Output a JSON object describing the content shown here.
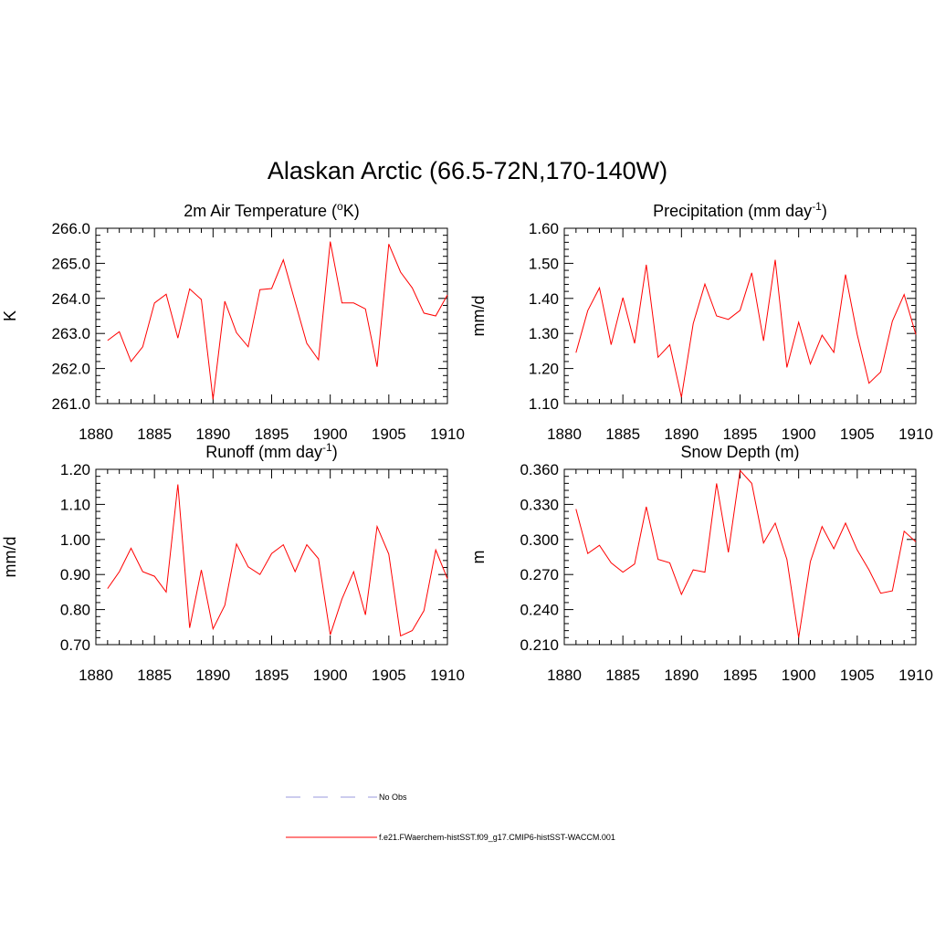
{
  "figure": {
    "title": "Alaskan Arctic (66.5-72N,170-140W)"
  },
  "colors": {
    "series": "#ff0000",
    "no_obs": "#9999dd",
    "axes": "#000000"
  },
  "legend": [
    {
      "label": "No Obs",
      "style": "dashed"
    },
    {
      "label": "f.e21.FWaerchem-histSST.f09_g17.CMIP6-histSST-WACCM.001",
      "style": "solid"
    }
  ],
  "chart_data": [
    {
      "type": "line",
      "title_main": "2m Air Temperature (",
      "title_sup": "o",
      "title_tail": "K)",
      "ylabel": "K",
      "xlim": [
        1880,
        1910
      ],
      "ylim": [
        261.0,
        266.0
      ],
      "x_ticks": [
        "1880",
        "1885",
        "1890",
        "1895",
        "1900",
        "1905",
        "1910"
      ],
      "y_ticks": [
        "261.0",
        "262.0",
        "263.0",
        "264.0",
        "265.0",
        "266.0"
      ],
      "x": [
        1881,
        1882,
        1883,
        1884,
        1885,
        1886,
        1887,
        1888,
        1889,
        1890,
        1891,
        1892,
        1893,
        1894,
        1895,
        1896,
        1897,
        1898,
        1899,
        1900,
        1901,
        1902,
        1903,
        1904,
        1905,
        1906,
        1907,
        1908,
        1909,
        1910
      ],
      "values": [
        262.8,
        263.05,
        262.2,
        262.62,
        263.87,
        264.12,
        262.87,
        264.27,
        263.97,
        261.12,
        263.92,
        263.02,
        262.62,
        264.25,
        264.28,
        265.1,
        263.9,
        262.72,
        262.25,
        265.62,
        263.87,
        263.87,
        263.7,
        262.05,
        265.55,
        264.75,
        264.3,
        263.58,
        263.5,
        264.1
      ],
      "series": [
        {
          "name": "f.e21.FWaerchem-histSST.f09_g17.CMIP6-histSST-WACCM.001"
        }
      ],
      "grid": false
    },
    {
      "type": "line",
      "title_main": "Precipitation (mm day",
      "title_sup": "-1",
      "title_tail": ")",
      "ylabel": "mm/d",
      "xlim": [
        1880,
        1910
      ],
      "ylim": [
        1.1,
        1.6
      ],
      "x_ticks": [
        "1880",
        "1885",
        "1890",
        "1895",
        "1900",
        "1905",
        "1910"
      ],
      "y_ticks": [
        "1.10",
        "1.20",
        "1.30",
        "1.40",
        "1.50",
        "1.60"
      ],
      "x": [
        1881,
        1882,
        1883,
        1884,
        1885,
        1886,
        1887,
        1888,
        1889,
        1890,
        1891,
        1892,
        1893,
        1894,
        1895,
        1896,
        1897,
        1898,
        1899,
        1900,
        1901,
        1902,
        1903,
        1904,
        1905,
        1906,
        1907,
        1908,
        1909,
        1910
      ],
      "values": [
        1.245,
        1.365,
        1.43,
        1.268,
        1.402,
        1.272,
        1.496,
        1.232,
        1.268,
        1.118,
        1.328,
        1.441,
        1.35,
        1.34,
        1.366,
        1.473,
        1.279,
        1.51,
        1.203,
        1.332,
        1.213,
        1.295,
        1.246,
        1.468,
        1.297,
        1.158,
        1.19,
        1.335,
        1.411,
        1.297
      ],
      "series": [
        {
          "name": "f.e21.FWaerchem-histSST.f09_g17.CMIP6-histSST-WACCM.001"
        }
      ],
      "grid": false
    },
    {
      "type": "line",
      "title_main": "Runoff (mm day",
      "title_sup": "-1",
      "title_tail": ")",
      "ylabel": "mm/d",
      "xlim": [
        1880,
        1910
      ],
      "ylim": [
        0.7,
        1.2
      ],
      "x_ticks": [
        "1880",
        "1885",
        "1890",
        "1895",
        "1900",
        "1905",
        "1910"
      ],
      "y_ticks": [
        "0.70",
        "0.80",
        "0.90",
        "1.00",
        "1.10",
        "1.20"
      ],
      "x": [
        1881,
        1882,
        1883,
        1884,
        1885,
        1886,
        1887,
        1888,
        1889,
        1890,
        1891,
        1892,
        1893,
        1894,
        1895,
        1896,
        1897,
        1898,
        1899,
        1900,
        1901,
        1902,
        1903,
        1904,
        1905,
        1906,
        1907,
        1908,
        1909,
        1910
      ],
      "values": [
        0.86,
        0.908,
        0.975,
        0.908,
        0.895,
        0.85,
        1.157,
        0.748,
        0.913,
        0.745,
        0.812,
        0.987,
        0.922,
        0.9,
        0.96,
        0.985,
        0.908,
        0.985,
        0.945,
        0.728,
        0.83,
        0.908,
        0.785,
        1.037,
        0.958,
        0.725,
        0.74,
        0.797,
        0.97,
        0.888
      ],
      "series": [
        {
          "name": "f.e21.FWaerchem-histSST.f09_g17.CMIP6-histSST-WACCM.001"
        }
      ],
      "grid": false
    },
    {
      "type": "line",
      "title_main": "Snow Depth (m)",
      "title_sup": "",
      "title_tail": "",
      "ylabel": "m",
      "xlim": [
        1880,
        1910
      ],
      "ylim": [
        0.21,
        0.36
      ],
      "x_ticks": [
        "1880",
        "1885",
        "1890",
        "1895",
        "1900",
        "1905",
        "1910"
      ],
      "y_ticks": [
        "0.210",
        "0.240",
        "0.270",
        "0.300",
        "0.330",
        "0.360"
      ],
      "x": [
        1881,
        1882,
        1883,
        1884,
        1885,
        1886,
        1887,
        1888,
        1889,
        1890,
        1891,
        1892,
        1893,
        1894,
        1895,
        1896,
        1897,
        1898,
        1899,
        1900,
        1901,
        1902,
        1903,
        1904,
        1905,
        1906,
        1907,
        1908,
        1909,
        1910
      ],
      "values": [
        0.326,
        0.288,
        0.295,
        0.28,
        0.272,
        0.279,
        0.328,
        0.283,
        0.28,
        0.253,
        0.274,
        0.272,
        0.348,
        0.289,
        0.359,
        0.348,
        0.297,
        0.314,
        0.283,
        0.216,
        0.281,
        0.311,
        0.292,
        0.314,
        0.291,
        0.274,
        0.254,
        0.256,
        0.307,
        0.298
      ],
      "series": [
        {
          "name": "f.e21.FWaerchem-histSST.f09_g17.CMIP6-histSST-WACCM.001"
        }
      ],
      "grid": false
    }
  ]
}
